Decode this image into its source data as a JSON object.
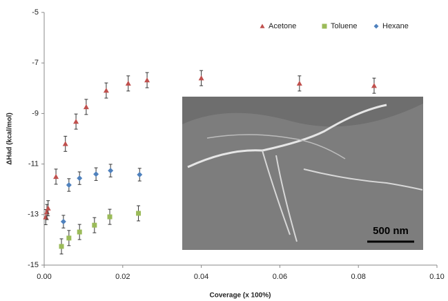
{
  "chart_data": {
    "type": "scatter",
    "xlabel": "Coverage (x 100%)",
    "ylabel": "ΔHad (kcal/mol)",
    "xlim": [
      0,
      0.1
    ],
    "ylim": [
      -15,
      -5
    ],
    "xticks": [
      {
        "value": 0,
        "label": "0.00"
      },
      {
        "value": 0.02,
        "label": "0.02"
      },
      {
        "value": 0.04,
        "label": "0.04"
      },
      {
        "value": 0.06,
        "label": "0.06"
      },
      {
        "value": 0.08,
        "label": "0.08"
      },
      {
        "value": 0.1,
        "label": "0.10"
      }
    ],
    "yticks": [
      -15,
      -13,
      -11,
      -9,
      -7,
      -5
    ],
    "grid": false,
    "legend": "top-right",
    "inset_label": "500 nm",
    "series": [
      {
        "name": "Acetone",
        "color": "#c0504d",
        "marker": "triangle",
        "x": [
          0.0004,
          0.0007,
          0.001,
          0.003,
          0.0054,
          0.0081,
          0.0107,
          0.0158,
          0.0214,
          0.0262,
          0.04,
          0.065,
          0.084
        ],
        "values": [
          -13.1,
          -12.9,
          -12.75,
          -11.5,
          -10.2,
          -9.32,
          -8.74,
          -8.09,
          -7.81,
          -7.68,
          -7.6,
          -7.81,
          -7.9
        ],
        "errors": [
          0.3,
          0.3,
          0.3,
          0.3,
          0.3,
          0.3,
          0.3,
          0.3,
          0.3,
          0.3,
          0.3,
          0.3,
          0.3
        ]
      },
      {
        "name": "Toluene",
        "color": "#9bbb59",
        "marker": "square",
        "x": [
          0.0044,
          0.0063,
          0.009,
          0.0128,
          0.0167,
          0.024
        ],
        "values": [
          -14.26,
          -13.93,
          -13.69,
          -13.42,
          -13.09,
          -12.95
        ],
        "errors": [
          0.3,
          0.3,
          0.3,
          0.3,
          0.3,
          0.3
        ]
      },
      {
        "name": "Hexane",
        "color": "#4f81bd",
        "marker": "diamond",
        "x": [
          0.0049,
          0.0063,
          0.009,
          0.0132,
          0.0169,
          0.0243
        ],
        "values": [
          -13.28,
          -11.83,
          -11.56,
          -11.4,
          -11.26,
          -11.42
        ],
        "errors": [
          0.25,
          0.25,
          0.25,
          0.25,
          0.25,
          0.25
        ]
      }
    ]
  }
}
